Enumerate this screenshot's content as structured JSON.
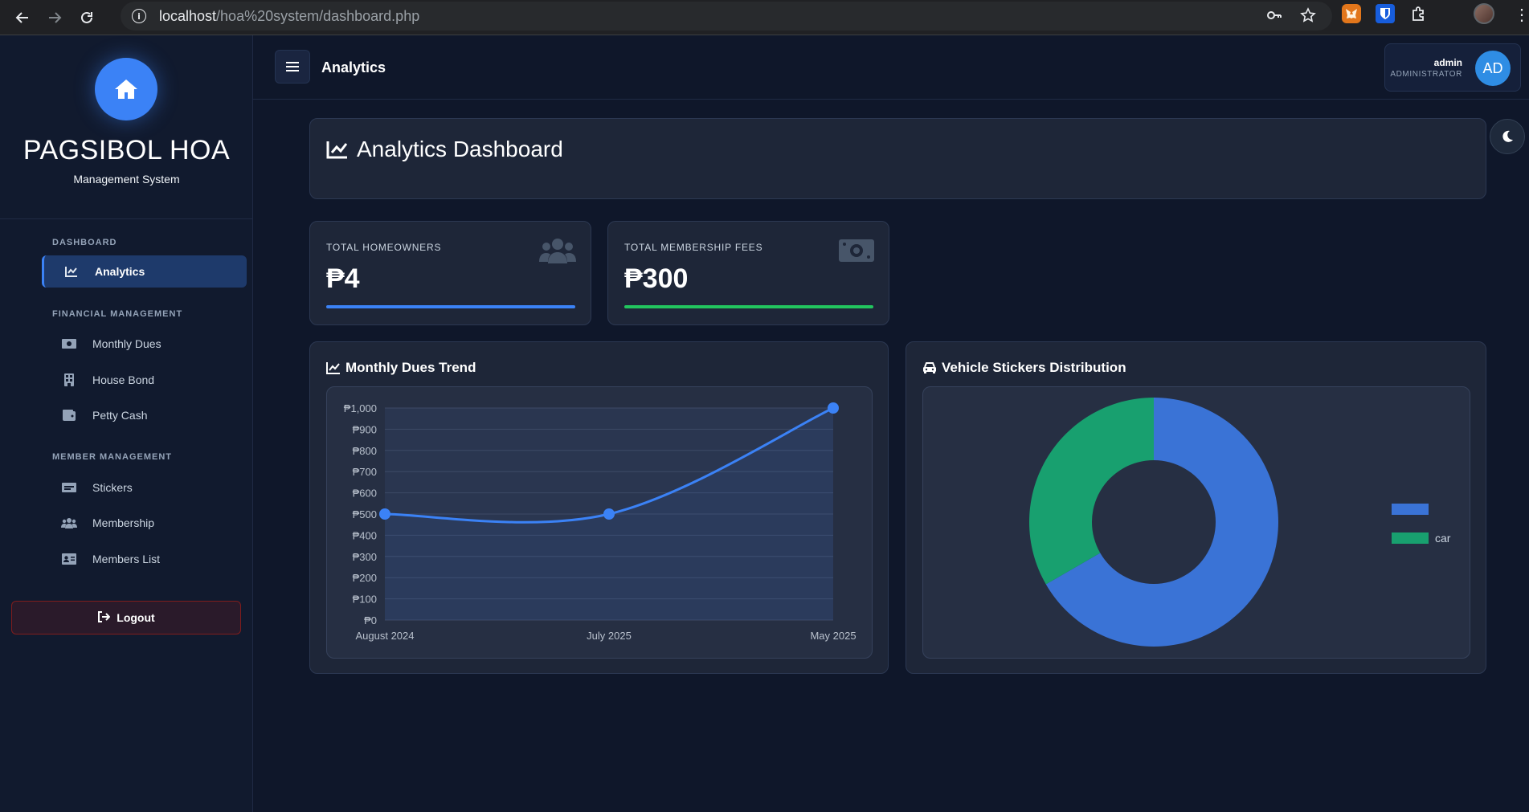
{
  "browser": {
    "url_host": "localhost",
    "url_path": "/hoa%20system/dashboard.php"
  },
  "sidebar": {
    "brand_title": "PAGSIBOL HOA",
    "brand_subtitle": "Management System",
    "sections": [
      {
        "label": "DASHBOARD"
      },
      {
        "label": "FINANCIAL MANAGEMENT"
      },
      {
        "label": "MEMBER MANAGEMENT"
      }
    ],
    "items": [
      {
        "label": "Analytics",
        "icon": "chart-line-icon"
      },
      {
        "label": "Monthly Dues",
        "icon": "money-icon"
      },
      {
        "label": "House Bond",
        "icon": "building-icon"
      },
      {
        "label": "Petty Cash",
        "icon": "wallet-icon"
      },
      {
        "label": "Stickers",
        "icon": "id-card-icon"
      },
      {
        "label": "Membership",
        "icon": "users-icon"
      },
      {
        "label": "Members List",
        "icon": "address-card-icon"
      }
    ],
    "logout_label": "Logout"
  },
  "topbar": {
    "title": "Analytics",
    "user_name": "admin",
    "user_role": "ADMINISTRATOR",
    "avatar_initials": "AD"
  },
  "header": {
    "title": "Analytics Dashboard"
  },
  "stats": [
    {
      "label": "TOTAL HOMEOWNERS",
      "value": "₱4",
      "icon": "users-icon",
      "color": "#3b82f6"
    },
    {
      "label": "TOTAL MEMBERSHIP FEES",
      "value": "₱300",
      "icon": "money-bill-icon",
      "color": "#22c55e"
    }
  ],
  "charts": {
    "line_title": "Monthly Dues Trend",
    "pie_title": "Vehicle Stickers Distribution"
  },
  "chart_data": [
    {
      "type": "line",
      "title": "Monthly Dues Trend",
      "categories": [
        "August 2024",
        "July 2025",
        "May 2025"
      ],
      "series": [
        {
          "values": [
            500,
            500,
            1000
          ],
          "color": "#3b82f6"
        }
      ],
      "ylim": [
        0,
        1000
      ],
      "yticks": [
        "₱0",
        "₱100",
        "₱200",
        "₱300",
        "₱400",
        "₱500",
        "₱600",
        "₱700",
        "₱800",
        "₱900",
        "₱1,000"
      ],
      "grid": true
    },
    {
      "type": "pie",
      "title": "Vehicle Stickers Distribution",
      "labels": [
        "",
        "car"
      ],
      "values": [
        2,
        1
      ],
      "colors": [
        "#3a73d6",
        "#18a06f"
      ],
      "legend": "right"
    }
  ]
}
